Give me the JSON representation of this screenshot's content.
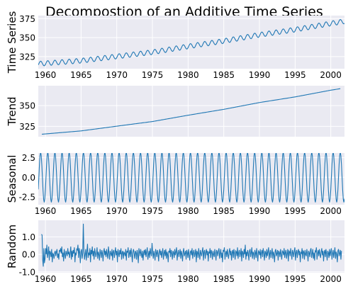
{
  "chart_data": {
    "type": "line",
    "title": "Decompostion of an Additive Time Series",
    "x_ticks": [
      "1960",
      "1965",
      "1970",
      "1975",
      "1980",
      "1985",
      "1990",
      "1995",
      "2000"
    ],
    "x_start": 1959.0,
    "x_end": 2001.92,
    "x_step": 0.0833333,
    "grid": true,
    "line_color": "#1f77b4",
    "panel_color": "#eaeaf2",
    "panels": [
      {
        "ylabel": "Time Series",
        "ylim": [
          309,
          379
        ],
        "yticks": [
          "325",
          "350",
          "375"
        ],
        "ytick_values": [
          325,
          350,
          375
        ],
        "trend_knots_x": [
          1959,
          1965,
          1970,
          1975,
          1980,
          1985,
          1990,
          1995,
          2000,
          2001.92
        ],
        "trend_knots_y": [
          315.5,
          319.5,
          325.2,
          330.8,
          338.4,
          345.5,
          353.7,
          360.5,
          368.6,
          371.5
        ],
        "seasonal_amplitude": 3.2
      },
      {
        "ylabel": "Trend",
        "ylim": [
          312.5,
          374
        ],
        "yticks": [
          "325",
          "350"
        ],
        "ytick_values": [
          325,
          350
        ],
        "knots_x": [
          1959.5,
          1965,
          1970,
          1975,
          1980,
          1985,
          1990,
          1995,
          2000,
          2001.4
        ],
        "knots_y": [
          315.5,
          319.5,
          325.2,
          330.8,
          338.4,
          345.5,
          353.7,
          360.5,
          368.6,
          370.5
        ]
      },
      {
        "ylabel": "Seasonal",
        "ylim": [
          -3.5,
          3.1
        ],
        "yticks": [
          "2.5",
          "0.0",
          "-2.5"
        ],
        "ytick_values": [
          2.5,
          0.0,
          -2.5
        ],
        "amplitude": 3.2,
        "period": 1.0
      },
      {
        "ylabel": "Random",
        "ylim": [
          -1.05,
          1.95
        ],
        "yticks": [
          "1.0",
          "0.0",
          "-1.0"
        ],
        "ytick_values": [
          1.0,
          0.0,
          -1.0
        ],
        "values": [
          1.15,
          1.1,
          -0.3,
          -0.7,
          0.35,
          -0.5,
          -0.25,
          0.35,
          0.0,
          0.55,
          -0.2,
          0.05,
          0.45,
          -0.35,
          0.2,
          0.1,
          -0.15,
          0.3,
          -0.45,
          0.05,
          0.0,
          -0.25,
          0.1,
          0.2,
          -0.1,
          0.15,
          0.3,
          -0.2,
          0.05,
          -0.3,
          0.25,
          0.15,
          0.35,
          0.05,
          0.45,
          -0.15,
          0.1,
          -0.4,
          0.3,
          0.0,
          -0.25,
          0.2,
          0.05,
          -0.1,
          0.35,
          0.0,
          0.15,
          -0.2,
          0.1,
          0.45,
          -0.3,
          0.2,
          -0.15,
          0.25,
          0.05,
          0.4,
          -0.45,
          0.1,
          -0.05,
          0.3,
          0.25,
          0.55,
          -0.2,
          0.35,
          0.1,
          -0.5,
          0.15,
          0.3,
          -0.25,
          0.05,
          1.75,
          0.2,
          -0.3,
          0.0,
          0.3,
          -0.35,
          0.15,
          0.6,
          -0.2,
          0.1,
          -0.05,
          0.35,
          -0.45,
          0.25,
          0.0,
          0.45,
          -0.1,
          0.2,
          -0.3,
          0.35,
          0.1,
          -0.15,
          0.05,
          0.4,
          -0.25,
          0.15,
          0.0,
          -0.35,
          0.3,
          0.1,
          -0.2,
          0.25,
          0.05,
          -0.4,
          0.15,
          0.35,
          -0.05,
          0.2,
          -0.15,
          0.3,
          0.0,
          -0.25,
          0.45,
          0.1,
          -0.3,
          0.2,
          0.05,
          -0.1,
          0.3,
          -0.35,
          0.15,
          0.25,
          -0.2,
          0.1,
          0.4,
          -0.05,
          0.2,
          -0.45,
          0.3,
          0.05,
          -0.15,
          0.25,
          0.0,
          0.35,
          -0.3,
          0.1,
          0.2,
          -0.25,
          0.15,
          0.05,
          -0.1,
          0.3,
          -0.35,
          0.2,
          0.1,
          0.4,
          -0.2,
          0.05,
          0.25,
          -0.15,
          0.35,
          0.0,
          -0.45,
          0.15,
          0.3,
          0.05,
          -0.25,
          0.2,
          0.1,
          -0.3,
          0.25,
          0.0,
          -0.5,
          0.35,
          0.15,
          -0.1,
          0.3,
          0.05,
          -0.2,
          0.2,
          -0.35,
          0.1,
          0.25,
          -0.05,
          0.3,
          -0.15,
          0.15,
          0.4,
          -0.3,
          0.0,
          0.2,
          -0.2,
          0.35,
          0.05,
          -0.1,
          0.65,
          0.1,
          -0.25,
          0.2,
          0.0,
          -0.35,
          0.3,
          0.1,
          -0.15,
          0.25,
          0.05,
          -0.4,
          0.15,
          0.3,
          -0.05,
          0.2,
          -0.2,
          0.1,
          0.35,
          -0.3,
          0.05,
          0.25,
          -0.1,
          0.3,
          -0.25,
          0.15,
          0.0,
          -0.45,
          0.2,
          0.1,
          0.35,
          -0.15,
          0.25,
          0.05,
          -0.3,
          0.2,
          0.1,
          -0.2,
          0.3,
          -0.05,
          0.15,
          0.4,
          -0.35,
          0.05,
          0.25,
          -0.15,
          0.1,
          0.3,
          -0.25,
          0.2,
          0.0,
          -0.4,
          0.15,
          0.35,
          -0.1,
          0.05,
          0.2,
          -0.3,
          0.25,
          0.1,
          -0.2,
          0.3,
          0.0,
          -0.35,
          0.15,
          0.2,
          -0.05,
          0.35,
          -0.25,
          0.1,
          0.25,
          -0.15,
          0.05,
          0.3,
          -0.45,
          0.2,
          0.1,
          -0.2,
          0.35,
          0.0,
          -0.3,
          0.25,
          0.05,
          -0.1,
          0.2,
          0.4,
          -0.35,
          0.15,
          0.25,
          -0.25,
          0.1,
          0.3,
          -0.05,
          0.2,
          -0.4,
          0.15,
          0.05,
          0.35,
          -0.2,
          0.25,
          0.1,
          -0.3,
          0.2,
          0.0,
          -0.15,
          0.3,
          0.05,
          -0.35,
          0.25,
          0.15,
          -0.1,
          0.2,
          0.35,
          -0.25,
          0.05,
          0.3,
          -0.2,
          0.1,
          -0.45,
          0.25,
          0.15,
          0.4,
          -0.3,
          0.05,
          0.2,
          -0.15,
          0.3,
          0.0,
          -0.25,
          0.15,
          0.35,
          -0.05,
          0.2,
          -0.35,
          0.1,
          0.25,
          -0.2,
          0.3,
          0.05,
          -0.3,
          0.2,
          0.15,
          -0.1,
          0.4,
          -0.25,
          0.1,
          0.25,
          -0.15,
          0.05,
          0.35,
          -0.4,
          0.2,
          0.1,
          -0.2,
          0.3,
          0.0,
          0.55,
          -0.3,
          0.15,
          -0.1,
          0.25,
          0.05,
          -0.35,
          0.2,
          0.3,
          -0.15,
          0.1,
          0.4,
          -0.25,
          0.15,
          0.05,
          -0.3,
          0.25,
          0.1,
          -0.2,
          0.35,
          0.0,
          -0.4,
          0.2,
          0.15,
          -0.05,
          0.3,
          -0.25,
          0.1,
          0.25,
          -0.15,
          0.35,
          0.05,
          -0.35,
          0.2,
          0.1,
          -0.2,
          0.3,
          -0.1,
          0.15,
          0.4,
          -0.3,
          0.05,
          0.25,
          -0.2,
          0.1,
          0.35,
          -0.25,
          0.15,
          0.0,
          -0.45,
          0.2,
          0.3,
          -0.1,
          0.05,
          0.25,
          -0.35,
          0.2,
          0.1,
          -0.15,
          0.3,
          0.0,
          -0.3,
          0.2,
          0.15,
          -0.05,
          0.35,
          -0.2,
          0.1,
          0.25,
          -0.25,
          0.05,
          0.3,
          -0.4,
          0.2,
          0.15,
          -0.1,
          0.35,
          0.05,
          -0.3,
          0.25,
          0.1,
          -0.15,
          0.2,
          0.4,
          -0.35,
          0.1,
          0.25,
          -0.2,
          0.15,
          0.3,
          -0.05,
          0.2,
          -0.45,
          0.1,
          0.05,
          0.35,
          -0.25,
          0.2,
          0.15,
          -0.3,
          0.25,
          0.0,
          -0.1,
          0.3,
          0.05,
          -0.4,
          0.2,
          0.1,
          -0.15,
          0.25,
          0.35,
          -0.2,
          0.05,
          0.3,
          -0.25,
          0.1,
          -0.35,
          0.2,
          0.15,
          0.4,
          -0.3,
          0.05,
          0.25,
          -0.1,
          0.3,
          0.0,
          -0.2,
          0.15,
          0.35,
          -0.05,
          0.2,
          -0.4,
          0.1,
          0.25,
          -0.15,
          0.3,
          0.05,
          -0.35,
          0.2,
          0.1,
          -0.2,
          0.3,
          -0.1,
          0.15,
          0.35,
          -0.3,
          0.05,
          0.25,
          -0.2,
          0.1,
          0.4,
          -0.25,
          0.15,
          0.0,
          -0.45,
          0.2,
          0.3,
          -0.1,
          0.05,
          0.25,
          -0.3,
          0.2
        ]
      }
    ]
  }
}
